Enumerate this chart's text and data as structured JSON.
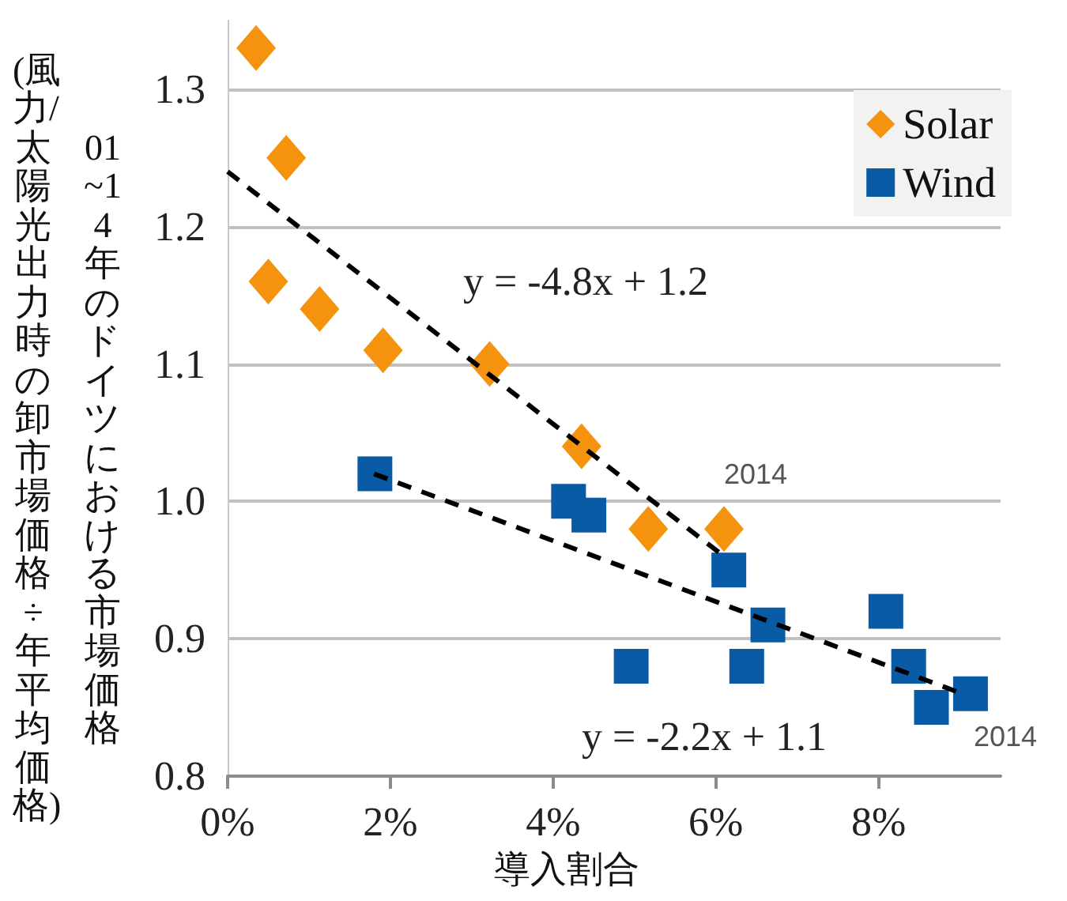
{
  "chart_data": {
    "type": "scatter",
    "xlabel": "導入割合",
    "ylabel": "01~14年のドイツにおける市場価格\n(風力/太陽光出力時の卸市場価格÷年平均価格)",
    "xlim": [
      0,
      9.5
    ],
    "xticks": [
      {
        "value": 0,
        "label": "0%"
      },
      {
        "value": 2,
        "label": "2%"
      },
      {
        "value": 4,
        "label": "4%"
      },
      {
        "value": 6,
        "label": "6%"
      },
      {
        "value": 8,
        "label": "8%"
      }
    ],
    "ylim": [
      0.8,
      1.35
    ],
    "yticks": [
      0.8,
      0.9,
      {
        "value": 1,
        "label": "1.0"
      },
      1.1,
      1.2,
      1.3
    ],
    "grid": "y",
    "legend": "top right",
    "series": [
      {
        "name": "Solar",
        "marker": "diamond",
        "color": "#f5930f",
        "x": [
          0.35,
          0.72,
          0.5,
          1.13,
          1.91,
          3.22,
          4.35,
          5.17,
          6.1
        ],
        "values": [
          1.33,
          1.25,
          1.16,
          1.14,
          1.11,
          1.1,
          1.04,
          0.98,
          0.98
        ]
      },
      {
        "name": "Wind",
        "marker": "square",
        "color": "#0a5ba6",
        "x": [
          1.81,
          4.19,
          4.44,
          4.96,
          6.16,
          6.64,
          6.38,
          8.09,
          8.37,
          8.65,
          9.13
        ],
        "values": [
          1.02,
          1.0,
          0.99,
          0.88,
          0.95,
          0.91,
          0.88,
          0.92,
          0.88,
          0.85,
          0.86
        ]
      },
      {
        "type": "line",
        "marker": "none",
        "line_style": "dashed",
        "color": "#000000",
        "x": [
          0,
          6.1
        ],
        "values": [
          1.24,
          0.96
        ]
      },
      {
        "type": "line",
        "marker": "none",
        "line_style": "dashed",
        "color": "#000000",
        "x": [
          1.8,
          9.03
        ],
        "values": [
          1.02,
          0.86
        ]
      }
    ],
    "annotations": [
      "y = -4.8x + 1.2",
      "2014",
      "y = -2.2x + 1.1",
      "2014"
    ]
  }
}
